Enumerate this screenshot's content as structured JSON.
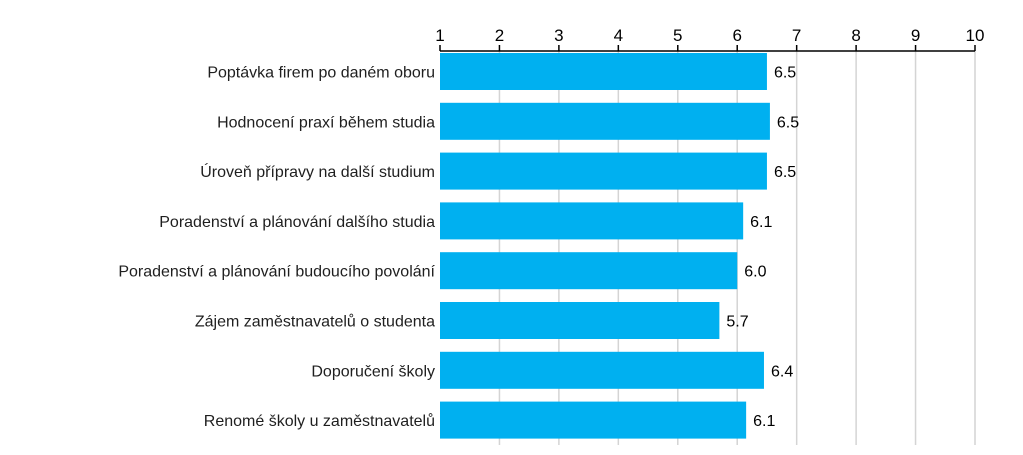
{
  "chart_data": {
    "type": "bar",
    "orientation": "horizontal",
    "categories": [
      "Poptávka firem po daném oboru",
      "Hodnocení praxí během studia",
      "Úroveň přípravy na další studium",
      "Poradenství a plánování dalšího studia",
      "Poradenství a plánování budoucího povolání",
      "Zájem zaměstnavatelů o studenta",
      "Doporučení školy",
      "Renomé školy u zaměstnavatelů"
    ],
    "values": [
      6.5,
      6.55,
      6.5,
      6.1,
      6.0,
      5.7,
      6.45,
      6.15
    ],
    "value_labels": [
      "6.5",
      "6.5",
      "6.5",
      "6.1",
      "6.0",
      "5.7",
      "6.4",
      "6.1"
    ],
    "xlim": [
      1,
      10
    ],
    "xticks": [
      1,
      2,
      3,
      4,
      5,
      6,
      7,
      8,
      9,
      10
    ],
    "tick_labels": [
      "1",
      "2",
      "3",
      "4",
      "5",
      "6",
      "7",
      "8",
      "9",
      "10"
    ],
    "axis_position": "top",
    "grid": true,
    "bar_color": "#00b0f0",
    "title": "",
    "xlabel": "",
    "ylabel": ""
  }
}
